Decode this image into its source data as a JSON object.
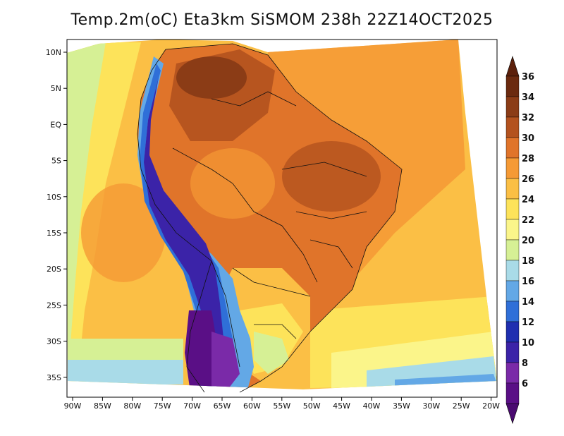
{
  "title": "Temp.2m(oC) Eta3km SiSMOM 238h 22Z14OCT2025",
  "map": {
    "lat_labels": [
      "10N",
      "5N",
      "EQ",
      "5S",
      "10S",
      "15S",
      "20S",
      "25S",
      "30S",
      "35S"
    ],
    "lon_labels": [
      "90W",
      "85W",
      "80W",
      "75W",
      "70W",
      "65W",
      "60W",
      "55W",
      "50W",
      "45W",
      "40W",
      "35W",
      "30W",
      "25W",
      "20W"
    ],
    "lat_range": [
      -38,
      11
    ],
    "lon_range": [
      -91,
      -20
    ],
    "variable": "Temp.2m(oC)"
  },
  "colorbar": {
    "labels": [
      "36",
      "34",
      "32",
      "30",
      "28",
      "26",
      "24",
      "22",
      "20",
      "18",
      "16",
      "14",
      "12",
      "10",
      "8",
      "6"
    ],
    "colors": [
      "#6b2a0f",
      "#8b3c16",
      "#b3521e",
      "#e0742a",
      "#f59a35",
      "#fbbf45",
      "#fde35a",
      "#fbf58a",
      "#d6f095",
      "#a9dbe8",
      "#63a8e6",
      "#2f6fd8",
      "#1f2fb0",
      "#3b23a8",
      "#7a2aa8",
      "#5a0f86"
    ],
    "extend_top_color": "#5c200b",
    "extend_bottom_color": "#4a0a70"
  }
}
